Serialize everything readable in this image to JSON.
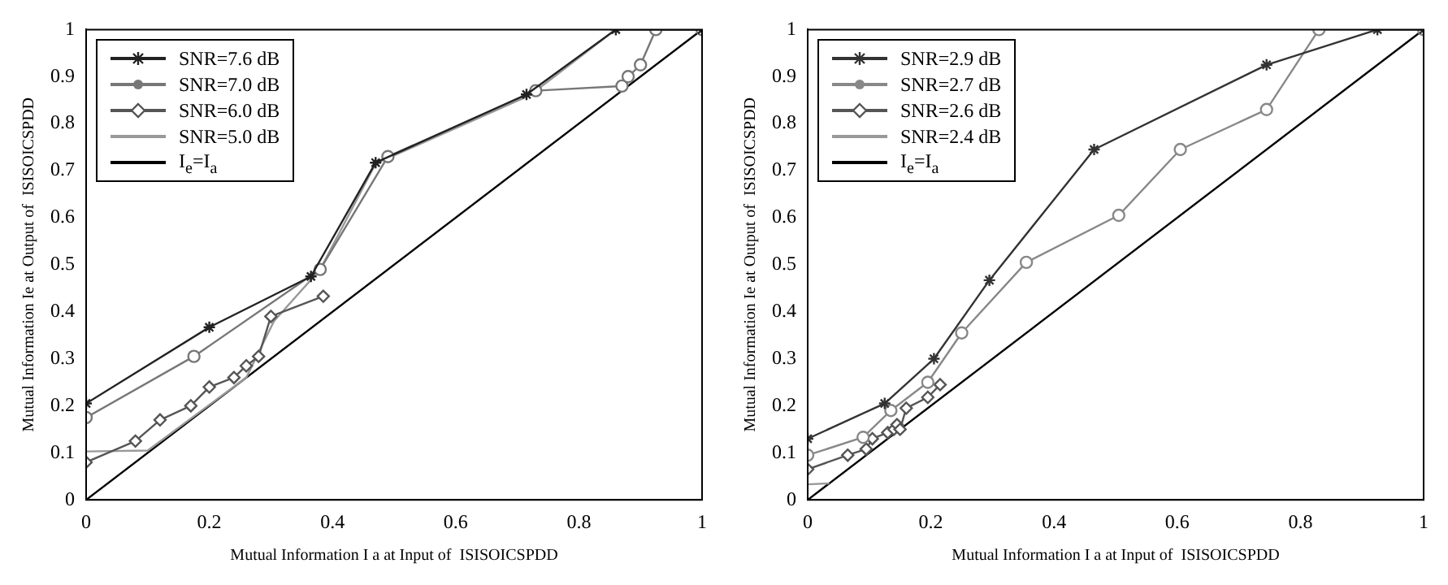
{
  "chart_data": [
    {
      "type": "line",
      "xlabel": "Mutual Information I a at Input of  ISISOICSPDD",
      "ylabel": "Mutual Information Ie at Output of  ISISOICSPDD",
      "xlim": [
        0,
        1
      ],
      "ylim": [
        0,
        1
      ],
      "xticks": [
        0,
        0.2,
        0.4,
        0.6,
        0.8,
        1
      ],
      "yticks": [
        0,
        0.1,
        0.2,
        0.3,
        0.4,
        0.5,
        0.6,
        0.7,
        0.8,
        0.9,
        1
      ],
      "grid": false,
      "legend": "top left",
      "series": [
        {
          "name": "SNR=7.6 dB",
          "color": "#222222",
          "marker": "cross",
          "x": [
            0,
            0.2,
            0.365,
            0.47,
            0.715,
            0.86,
            1
          ],
          "values": [
            0.205,
            0.367,
            0.475,
            0.717,
            0.862,
            1.0,
            1.0
          ]
        },
        {
          "name": "SNR=7.0 dB",
          "color": "#777777",
          "marker": "circle",
          "x": [
            0,
            0.175,
            0.38,
            0.49,
            0.73,
            0.87,
            0.88,
            0.9,
            0.925,
            1
          ],
          "values": [
            0.175,
            0.305,
            0.49,
            0.73,
            0.87,
            0.88,
            0.9,
            0.925,
            1.0,
            1.0
          ]
        },
        {
          "name": "SNR=6.0 dB",
          "color": "#555555",
          "marker": "diamond",
          "x": [
            0,
            0.08,
            0.12,
            0.17,
            0.2,
            0.24,
            0.26,
            0.28,
            0.3,
            0.385
          ],
          "values": [
            0.08,
            0.125,
            0.17,
            0.2,
            0.24,
            0.26,
            0.285,
            0.305,
            0.39,
            0.433
          ]
        },
        {
          "name": "SNR=5.0 dB",
          "color": "#999999",
          "marker": "none",
          "x": [
            0,
            0.1,
            0.26,
            0.305,
            0.38,
            0.47,
            0.72,
            0.86,
            1
          ],
          "values": [
            0.103,
            0.105,
            0.26,
            0.38,
            0.49,
            0.715,
            0.86,
            1.0,
            1.0
          ]
        },
        {
          "name": "I$_{e}$=I$_{a}$",
          "color": "#000000",
          "marker": "none",
          "x": [
            0,
            1
          ],
          "values": [
            0,
            1
          ]
        }
      ]
    },
    {
      "type": "line",
      "xlabel": "Mutual Information I a at Input of  ISISOICSPDD",
      "ylabel": "Mutual Information Ie at Output of  ISISOICSPDD",
      "xlim": [
        0,
        1
      ],
      "ylim": [
        0,
        1
      ],
      "xticks": [
        0,
        0.2,
        0.4,
        0.6,
        0.8,
        1
      ],
      "yticks": [
        0,
        0.1,
        0.2,
        0.3,
        0.4,
        0.5,
        0.6,
        0.7,
        0.8,
        0.9,
        1
      ],
      "grid": false,
      "legend": "top left",
      "series": [
        {
          "name": "SNR=2.9 dB",
          "color": "#333333",
          "marker": "cross",
          "x": [
            0,
            0.125,
            0.205,
            0.295,
            0.465,
            0.745,
            0.925,
            1
          ],
          "values": [
            0.13,
            0.205,
            0.3,
            0.467,
            0.745,
            0.925,
            1.0,
            1.0
          ]
        },
        {
          "name": "SNR=2.7 dB",
          "color": "#888888",
          "marker": "circle",
          "x": [
            0,
            0.09,
            0.135,
            0.195,
            0.25,
            0.355,
            0.505,
            0.605,
            0.745,
            0.83,
            1
          ],
          "values": [
            0.095,
            0.133,
            0.19,
            0.25,
            0.355,
            0.505,
            0.605,
            0.745,
            0.83,
            1.0,
            1.0
          ]
        },
        {
          "name": "SNR=2.6 dB",
          "color": "#555555",
          "marker": "diamond",
          "x": [
            0,
            0.065,
            0.095,
            0.105,
            0.13,
            0.14,
            0.145,
            0.15,
            0.16,
            0.195,
            0.215
          ],
          "values": [
            0.065,
            0.095,
            0.108,
            0.13,
            0.143,
            0.15,
            0.16,
            0.15,
            0.195,
            0.218,
            0.245
          ]
        },
        {
          "name": "SNR=2.4 dB",
          "color": "#999999",
          "marker": "none",
          "x": [
            0,
            0.035
          ],
          "values": [
            0.033,
            0.035
          ]
        },
        {
          "name": "I$_{e}$=I$_{a}$",
          "color": "#000000",
          "marker": "none",
          "x": [
            0,
            1
          ],
          "values": [
            0,
            1
          ]
        }
      ]
    }
  ]
}
